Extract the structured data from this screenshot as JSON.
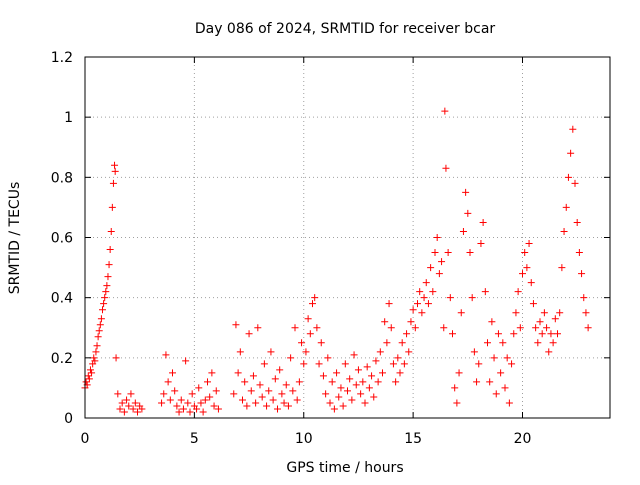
{
  "chart_data": {
    "type": "scatter",
    "title": "Day 086 of 2024, SRMTID for receiver bcar",
    "xlabel": "GPS time / hours",
    "ylabel": "SRMTID / TECUs",
    "xlim": [
      0,
      24
    ],
    "ylim": [
      0,
      1.2
    ],
    "xticks": [
      0,
      5,
      10,
      15,
      20
    ],
    "xtick_labels": [
      "0",
      "5",
      "10",
      "15",
      "20"
    ],
    "yticks": [
      0,
      0.2,
      0.4,
      0.6,
      0.8,
      1.0,
      1.2
    ],
    "ytick_labels": [
      "0",
      "0.2",
      "0.4",
      "0.6",
      "0.8",
      "1",
      "1.2"
    ],
    "grid": true,
    "marker": "+",
    "series": [
      {
        "name": "SRMTID",
        "color": "#ff0000",
        "points": [
          [
            0.0,
            0.1
          ],
          [
            0.05,
            0.12
          ],
          [
            0.1,
            0.11
          ],
          [
            0.15,
            0.14
          ],
          [
            0.2,
            0.13
          ],
          [
            0.25,
            0.16
          ],
          [
            0.3,
            0.15
          ],
          [
            0.35,
            0.18
          ],
          [
            0.4,
            0.2
          ],
          [
            0.45,
            0.19
          ],
          [
            0.5,
            0.22
          ],
          [
            0.55,
            0.24
          ],
          [
            0.6,
            0.27
          ],
          [
            0.65,
            0.29
          ],
          [
            0.7,
            0.31
          ],
          [
            0.75,
            0.33
          ],
          [
            0.8,
            0.36
          ],
          [
            0.85,
            0.38
          ],
          [
            0.9,
            0.4
          ],
          [
            0.95,
            0.42
          ],
          [
            1.0,
            0.44
          ],
          [
            1.05,
            0.47
          ],
          [
            1.1,
            0.51
          ],
          [
            1.15,
            0.56
          ],
          [
            1.2,
            0.62
          ],
          [
            1.25,
            0.7
          ],
          [
            1.3,
            0.78
          ],
          [
            1.35,
            0.84
          ],
          [
            1.38,
            0.82
          ],
          [
            1.42,
            0.2
          ],
          [
            1.5,
            0.08
          ],
          [
            1.6,
            0.03
          ],
          [
            1.7,
            0.05
          ],
          [
            1.8,
            0.02
          ],
          [
            1.9,
            0.06
          ],
          [
            2.0,
            0.04
          ],
          [
            2.1,
            0.08
          ],
          [
            2.2,
            0.03
          ],
          [
            2.3,
            0.05
          ],
          [
            2.4,
            0.02
          ],
          [
            2.5,
            0.04
          ],
          [
            2.6,
            0.03
          ],
          [
            3.5,
            0.05
          ],
          [
            3.6,
            0.08
          ],
          [
            3.7,
            0.21
          ],
          [
            3.8,
            0.12
          ],
          [
            3.9,
            0.06
          ],
          [
            4.0,
            0.15
          ],
          [
            4.1,
            0.09
          ],
          [
            4.2,
            0.04
          ],
          [
            4.3,
            0.02
          ],
          [
            4.4,
            0.06
          ],
          [
            4.5,
            0.03
          ],
          [
            4.6,
            0.19
          ],
          [
            4.7,
            0.05
          ],
          [
            4.8,
            0.02
          ],
          [
            4.9,
            0.08
          ],
          [
            5.0,
            0.04
          ],
          [
            5.1,
            0.03
          ],
          [
            5.2,
            0.1
          ],
          [
            5.3,
            0.05
          ],
          [
            5.4,
            0.02
          ],
          [
            5.5,
            0.06
          ],
          [
            5.6,
            0.12
          ],
          [
            5.7,
            0.07
          ],
          [
            5.8,
            0.15
          ],
          [
            5.9,
            0.04
          ],
          [
            6.0,
            0.09
          ],
          [
            6.1,
            0.03
          ],
          [
            6.8,
            0.08
          ],
          [
            6.9,
            0.31
          ],
          [
            7.0,
            0.15
          ],
          [
            7.1,
            0.22
          ],
          [
            7.2,
            0.06
          ],
          [
            7.3,
            0.12
          ],
          [
            7.4,
            0.04
          ],
          [
            7.5,
            0.28
          ],
          [
            7.6,
            0.09
          ],
          [
            7.7,
            0.14
          ],
          [
            7.8,
            0.05
          ],
          [
            7.9,
            0.3
          ],
          [
            8.0,
            0.11
          ],
          [
            8.1,
            0.07
          ],
          [
            8.2,
            0.18
          ],
          [
            8.3,
            0.04
          ],
          [
            8.4,
            0.09
          ],
          [
            8.5,
            0.22
          ],
          [
            8.6,
            0.06
          ],
          [
            8.7,
            0.13
          ],
          [
            8.8,
            0.03
          ],
          [
            8.9,
            0.16
          ],
          [
            9.0,
            0.08
          ],
          [
            9.1,
            0.05
          ],
          [
            9.2,
            0.11
          ],
          [
            9.3,
            0.04
          ],
          [
            9.4,
            0.2
          ],
          [
            9.5,
            0.09
          ],
          [
            9.6,
            0.3
          ],
          [
            9.7,
            0.06
          ],
          [
            9.8,
            0.12
          ],
          [
            9.9,
            0.25
          ],
          [
            10.0,
            0.18
          ],
          [
            10.1,
            0.22
          ],
          [
            10.2,
            0.33
          ],
          [
            10.3,
            0.28
          ],
          [
            10.4,
            0.38
          ],
          [
            10.5,
            0.4
          ],
          [
            10.6,
            0.3
          ],
          [
            10.7,
            0.18
          ],
          [
            10.8,
            0.25
          ],
          [
            10.9,
            0.14
          ],
          [
            11.0,
            0.08
          ],
          [
            11.1,
            0.2
          ],
          [
            11.2,
            0.05
          ],
          [
            11.3,
            0.12
          ],
          [
            11.4,
            0.03
          ],
          [
            11.5,
            0.15
          ],
          [
            11.6,
            0.07
          ],
          [
            11.7,
            0.1
          ],
          [
            11.8,
            0.04
          ],
          [
            11.9,
            0.18
          ],
          [
            12.0,
            0.09
          ],
          [
            12.1,
            0.13
          ],
          [
            12.2,
            0.06
          ],
          [
            12.3,
            0.21
          ],
          [
            12.4,
            0.11
          ],
          [
            12.5,
            0.16
          ],
          [
            12.6,
            0.08
          ],
          [
            12.7,
            0.12
          ],
          [
            12.8,
            0.05
          ],
          [
            12.9,
            0.17
          ],
          [
            13.0,
            0.1
          ],
          [
            13.1,
            0.14
          ],
          [
            13.2,
            0.07
          ],
          [
            13.3,
            0.19
          ],
          [
            13.4,
            0.12
          ],
          [
            13.5,
            0.22
          ],
          [
            13.6,
            0.15
          ],
          [
            13.7,
            0.32
          ],
          [
            13.8,
            0.25
          ],
          [
            13.9,
            0.38
          ],
          [
            14.0,
            0.3
          ],
          [
            14.1,
            0.18
          ],
          [
            14.2,
            0.12
          ],
          [
            14.3,
            0.2
          ],
          [
            14.4,
            0.15
          ],
          [
            14.5,
            0.25
          ],
          [
            14.6,
            0.18
          ],
          [
            14.7,
            0.28
          ],
          [
            14.8,
            0.22
          ],
          [
            14.9,
            0.32
          ],
          [
            15.0,
            0.36
          ],
          [
            15.1,
            0.3
          ],
          [
            15.2,
            0.38
          ],
          [
            15.3,
            0.42
          ],
          [
            15.4,
            0.35
          ],
          [
            15.5,
            0.4
          ],
          [
            15.6,
            0.45
          ],
          [
            15.7,
            0.38
          ],
          [
            15.8,
            0.5
          ],
          [
            15.9,
            0.42
          ],
          [
            16.0,
            0.55
          ],
          [
            16.1,
            0.6
          ],
          [
            16.2,
            0.48
          ],
          [
            16.3,
            0.52
          ],
          [
            16.4,
            0.3
          ],
          [
            16.45,
            1.02
          ],
          [
            16.5,
            0.83
          ],
          [
            16.6,
            0.55
          ],
          [
            16.7,
            0.4
          ],
          [
            16.8,
            0.28
          ],
          [
            16.9,
            0.1
          ],
          [
            17.0,
            0.05
          ],
          [
            17.1,
            0.15
          ],
          [
            17.2,
            0.35
          ],
          [
            17.3,
            0.62
          ],
          [
            17.4,
            0.75
          ],
          [
            17.5,
            0.68
          ],
          [
            17.6,
            0.55
          ],
          [
            17.7,
            0.4
          ],
          [
            17.8,
            0.22
          ],
          [
            17.9,
            0.12
          ],
          [
            18.0,
            0.18
          ],
          [
            18.1,
            0.58
          ],
          [
            18.2,
            0.65
          ],
          [
            18.3,
            0.42
          ],
          [
            18.4,
            0.25
          ],
          [
            18.5,
            0.12
          ],
          [
            18.6,
            0.32
          ],
          [
            18.7,
            0.2
          ],
          [
            18.8,
            0.08
          ],
          [
            18.9,
            0.28
          ],
          [
            19.0,
            0.15
          ],
          [
            19.1,
            0.25
          ],
          [
            19.2,
            0.1
          ],
          [
            19.3,
            0.2
          ],
          [
            19.4,
            0.05
          ],
          [
            19.5,
            0.18
          ],
          [
            19.6,
            0.28
          ],
          [
            19.7,
            0.35
          ],
          [
            19.8,
            0.42
          ],
          [
            19.9,
            0.3
          ],
          [
            20.0,
            0.48
          ],
          [
            20.1,
            0.55
          ],
          [
            20.2,
            0.5
          ],
          [
            20.3,
            0.58
          ],
          [
            20.4,
            0.45
          ],
          [
            20.5,
            0.38
          ],
          [
            20.6,
            0.3
          ],
          [
            20.7,
            0.25
          ],
          [
            20.8,
            0.32
          ],
          [
            20.9,
            0.28
          ],
          [
            21.0,
            0.35
          ],
          [
            21.1,
            0.3
          ],
          [
            21.2,
            0.22
          ],
          [
            21.3,
            0.28
          ],
          [
            21.4,
            0.25
          ],
          [
            21.5,
            0.33
          ],
          [
            21.6,
            0.28
          ],
          [
            21.7,
            0.35
          ],
          [
            21.8,
            0.5
          ],
          [
            21.9,
            0.62
          ],
          [
            22.0,
            0.7
          ],
          [
            22.1,
            0.8
          ],
          [
            22.2,
            0.88
          ],
          [
            22.3,
            0.96
          ],
          [
            22.4,
            0.78
          ],
          [
            22.5,
            0.65
          ],
          [
            22.6,
            0.55
          ],
          [
            22.7,
            0.48
          ],
          [
            22.8,
            0.4
          ],
          [
            22.9,
            0.35
          ],
          [
            23.0,
            0.3
          ]
        ]
      }
    ]
  }
}
